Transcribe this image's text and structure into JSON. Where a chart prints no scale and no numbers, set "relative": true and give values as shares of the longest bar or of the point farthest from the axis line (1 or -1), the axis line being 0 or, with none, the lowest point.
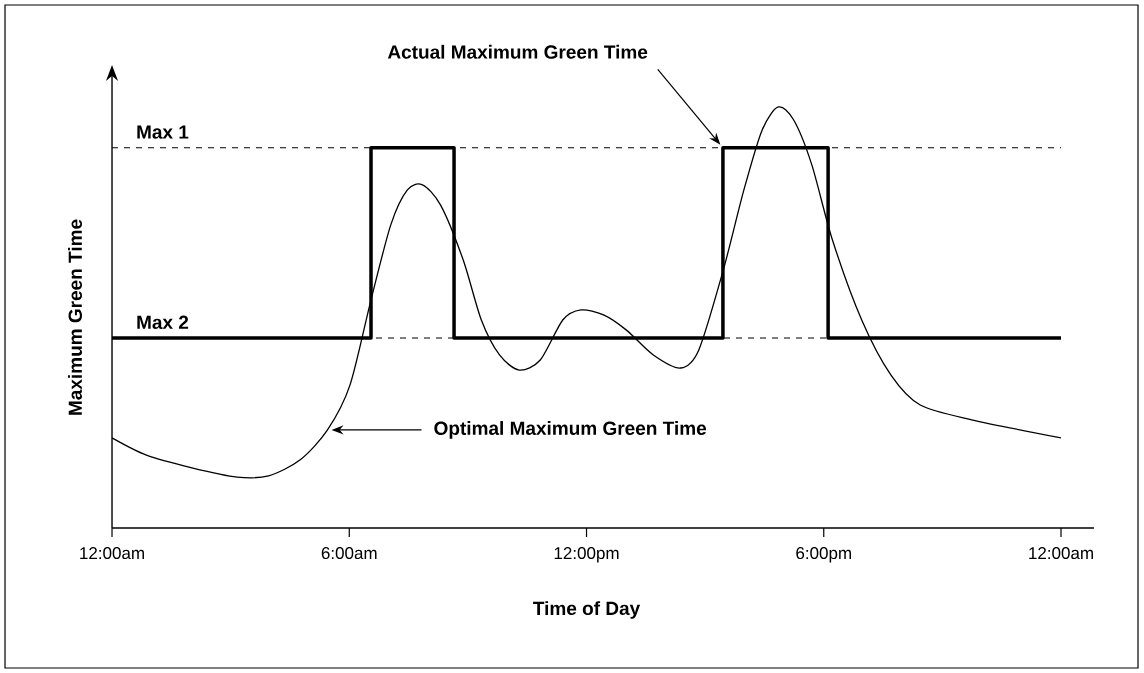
{
  "chart_data": {
    "type": "line",
    "relative": true,
    "xlabel": "Time of Day",
    "ylabel": "Maximum Green Time",
    "xlim": [
      0,
      24
    ],
    "xticks": [
      {
        "value": 0,
        "label": "12:00am"
      },
      {
        "value": 6,
        "label": "6:00am"
      },
      {
        "value": 12,
        "label": "12:00pm"
      },
      {
        "value": 18,
        "label": "6:00pm"
      },
      {
        "value": 24,
        "label": "12:00am"
      }
    ],
    "series": [
      {
        "type": "step",
        "color": "#000000",
        "x": [
          0,
          6.55,
          8.65,
          15.45,
          18.11,
          24
        ],
        "values": [
          0.451,
          0.903,
          0.451,
          0.903,
          0.451,
          0.451
        ]
      },
      {
        "color": "#000000",
        "x": [
          0,
          0.87,
          2.02,
          3.16,
          3.96,
          4.76,
          5.45,
          6.02,
          6.55,
          7.05,
          7.47,
          7.85,
          8.31,
          8.88,
          9.34,
          9.8,
          10.3,
          10.83,
          11.4,
          11.86,
          12.43,
          13.01,
          13.69,
          14.38,
          14.84,
          15.46,
          15.98,
          16.44,
          16.85,
          17.24,
          17.7,
          18.22,
          18.96,
          19.7,
          20.44,
          21.74,
          24
        ],
        "values": [
          0.214,
          0.173,
          0.143,
          0.121,
          0.124,
          0.162,
          0.233,
          0.34,
          0.542,
          0.72,
          0.803,
          0.815,
          0.767,
          0.637,
          0.494,
          0.411,
          0.375,
          0.399,
          0.494,
          0.518,
          0.506,
          0.47,
          0.411,
          0.38,
          0.423,
          0.613,
          0.803,
          0.945,
          1,
          0.969,
          0.862,
          0.684,
          0.494,
          0.363,
          0.292,
          0.257,
          0.214
        ]
      }
    ],
    "ref_lines": [
      {
        "axis": "y",
        "value": 0.903,
        "label": "Max 1",
        "color": "#000000",
        "line_style": "dashed"
      },
      {
        "axis": "y",
        "value": 0.451,
        "label": "Max 2",
        "color": "#000000",
        "line_style": "dashed"
      }
    ],
    "annotations": [
      "Actual Maximum Green Time",
      "Optimal Maximum Green Time"
    ],
    "grid": false,
    "marker": "none"
  }
}
